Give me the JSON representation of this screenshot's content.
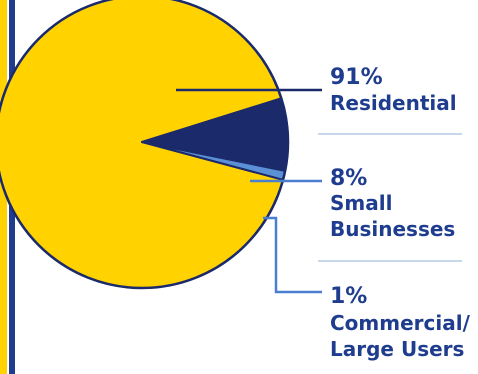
{
  "chart_data": {
    "type": "pie",
    "slices": [
      {
        "label": "Residential",
        "value": 91,
        "value_label": "91%",
        "label_lines": [
          "Residential"
        ]
      },
      {
        "label": "Small Businesses",
        "value": 8,
        "value_label": "8%",
        "label_lines": [
          "Small",
          "Businesses"
        ]
      },
      {
        "label": "Commercial/ Large Users",
        "value": 1,
        "value_label": "1%",
        "label_lines": [
          "Commercial/",
          "Large Users"
        ]
      }
    ],
    "colors": [
      "#ffd200",
      "#1b2a6b",
      "#5b8fd6"
    ],
    "text_color": "#1f3d8f",
    "stripe_colors": [
      "#ffd200",
      "#1f3d8f"
    ],
    "leader_line_colors": [
      "#1b2a6b",
      "#4a7fcf",
      "#4a7fcf"
    ],
    "legend": "right"
  }
}
